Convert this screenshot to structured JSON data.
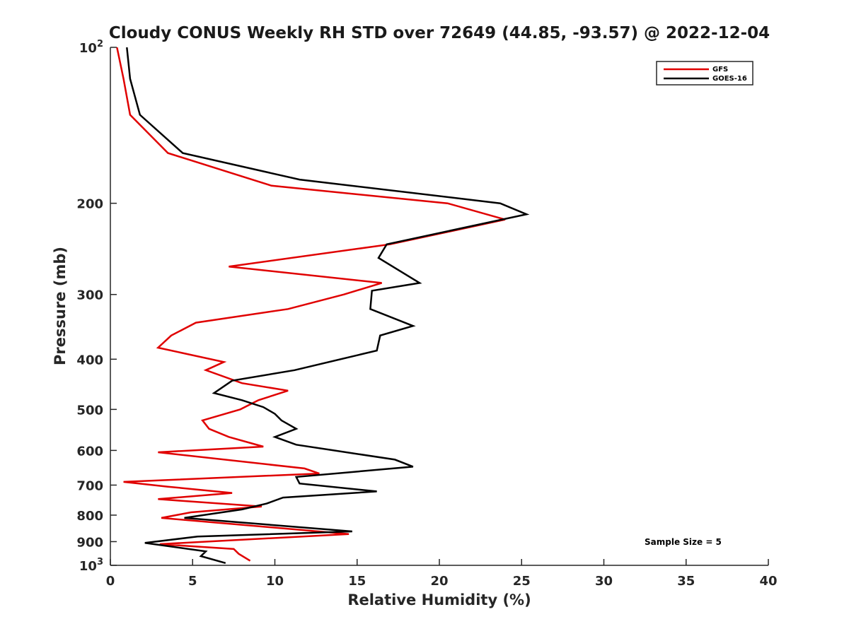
{
  "chart_data": {
    "type": "line",
    "title": "Cloudy CONUS Weekly RH STD over 72649 (44.85, -93.57) @ 2022-12-04",
    "xlabel": "Relative Humidity (%)",
    "ylabel": "Pressure (mb)",
    "xlim": [
      0,
      40
    ],
    "ylim": [
      100,
      1000
    ],
    "y_scale": "log",
    "y_reversed": true,
    "x_ticks": [
      "0",
      "5",
      "10",
      "15",
      "20",
      "25",
      "30",
      "35",
      "40"
    ],
    "y_ticks": [
      {
        "value": 100,
        "base": "10",
        "exp": "2"
      },
      {
        "value": 200,
        "label": "200"
      },
      {
        "value": 300,
        "label": "300"
      },
      {
        "value": 400,
        "label": "400"
      },
      {
        "value": 500,
        "label": "500"
      },
      {
        "value": 600,
        "label": "600"
      },
      {
        "value": 700,
        "label": "700"
      },
      {
        "value": 800,
        "label": "800"
      },
      {
        "value": 900,
        "label": "900"
      },
      {
        "value": 1000,
        "base": "10",
        "exp": "3"
      }
    ],
    "legend_position": "top-right",
    "grid": false,
    "annotation": "Sample Size = 5",
    "series": [
      {
        "name": "GFS",
        "color": "#e00000",
        "points": [
          [
            0.4,
            100
          ],
          [
            0.8,
            115
          ],
          [
            1.2,
            135
          ],
          [
            3.5,
            160
          ],
          [
            9.8,
            185
          ],
          [
            20.5,
            200
          ],
          [
            24.0,
            215
          ],
          [
            17.0,
            240
          ],
          [
            7.2,
            265
          ],
          [
            16.5,
            285
          ],
          [
            14.2,
            300
          ],
          [
            10.8,
            320
          ],
          [
            5.2,
            340
          ],
          [
            3.7,
            360
          ],
          [
            2.9,
            380
          ],
          [
            6.9,
            405
          ],
          [
            5.8,
            420
          ],
          [
            8.0,
            445
          ],
          [
            10.8,
            460
          ],
          [
            9.0,
            480
          ],
          [
            7.9,
            500
          ],
          [
            5.6,
            525
          ],
          [
            6.0,
            545
          ],
          [
            7.2,
            565
          ],
          [
            9.3,
            590
          ],
          [
            2.9,
            605
          ],
          [
            11.8,
            650
          ],
          [
            12.7,
            665
          ],
          [
            0.8,
            690
          ],
          [
            3.5,
            705
          ],
          [
            7.4,
            725
          ],
          [
            2.9,
            745
          ],
          [
            9.2,
            770
          ],
          [
            4.9,
            790
          ],
          [
            3.1,
            810
          ],
          [
            14.5,
            870
          ],
          [
            3.0,
            910
          ],
          [
            7.5,
            930
          ],
          [
            7.8,
            950
          ],
          [
            8.5,
            980
          ]
        ]
      },
      {
        "name": "GOES-16",
        "color": "#000000",
        "points": [
          [
            1.0,
            100
          ],
          [
            1.2,
            115
          ],
          [
            1.8,
            135
          ],
          [
            4.4,
            160
          ],
          [
            11.5,
            180
          ],
          [
            23.7,
            200
          ],
          [
            25.3,
            210
          ],
          [
            16.8,
            240
          ],
          [
            16.3,
            255
          ],
          [
            18.8,
            285
          ],
          [
            15.9,
            295
          ],
          [
            15.8,
            320
          ],
          [
            18.4,
            345
          ],
          [
            16.4,
            360
          ],
          [
            16.2,
            385
          ],
          [
            11.2,
            420
          ],
          [
            7.4,
            440
          ],
          [
            6.3,
            465
          ],
          [
            8.0,
            480
          ],
          [
            9.3,
            495
          ],
          [
            10.0,
            510
          ],
          [
            10.4,
            525
          ],
          [
            11.3,
            545
          ],
          [
            10.0,
            565
          ],
          [
            11.3,
            585
          ],
          [
            17.3,
            625
          ],
          [
            18.4,
            645
          ],
          [
            11.3,
            675
          ],
          [
            11.5,
            695
          ],
          [
            16.2,
            720
          ],
          [
            10.5,
            740
          ],
          [
            9.5,
            760
          ],
          [
            8.0,
            780
          ],
          [
            4.5,
            810
          ],
          [
            14.7,
            860
          ],
          [
            5.3,
            880
          ],
          [
            2.1,
            905
          ],
          [
            5.8,
            940
          ],
          [
            5.5,
            960
          ],
          [
            7.0,
            990
          ]
        ]
      }
    ]
  }
}
